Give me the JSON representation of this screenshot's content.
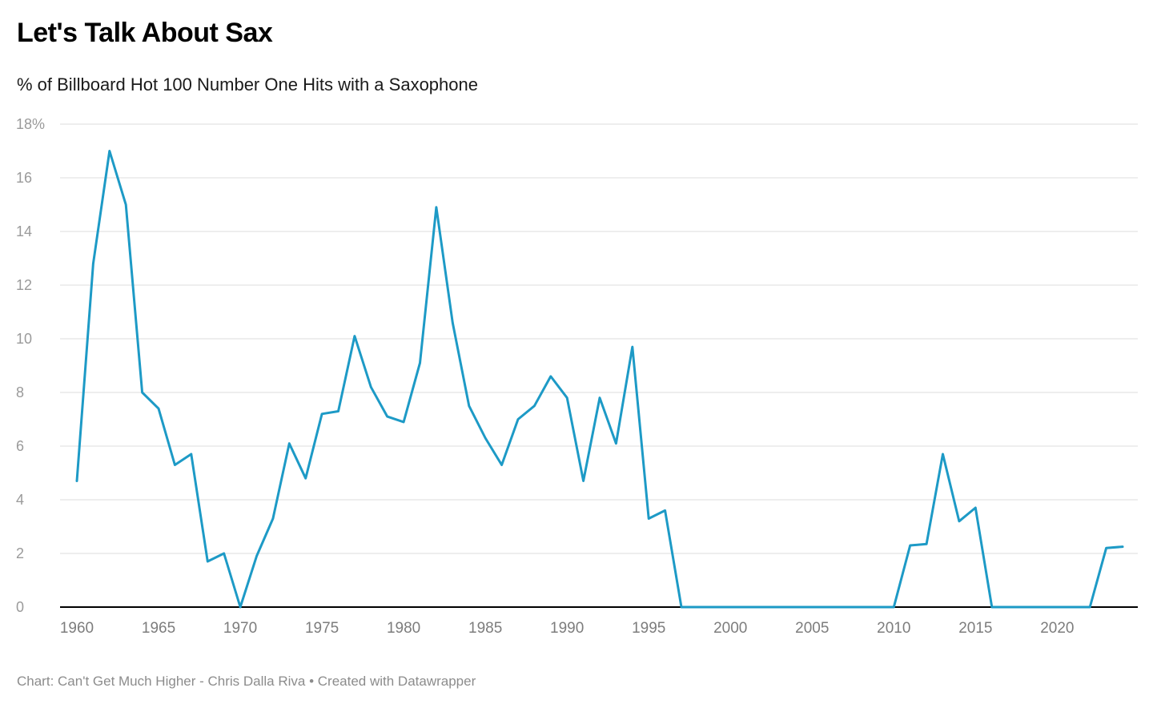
{
  "header": {
    "title": "Let's Talk About Sax",
    "subtitle": "% of Billboard Hot 100 Number One Hits with a Saxophone"
  },
  "footer": {
    "credit": "Chart: Can't Get Much Higher - Chris Dalla Riva • Created with Datawrapper"
  },
  "colors": {
    "line": "#1d9ac6",
    "grid": "#dddddd",
    "axis": "#000000",
    "y_tick_label": "#9a9a9a",
    "x_tick_label": "#7d7d7d"
  },
  "chart_data": {
    "type": "line",
    "title": "Let's Talk About Sax",
    "subtitle": "% of Billboard Hot 100 Number One Hits with a Saxophone",
    "xlabel": "",
    "ylabel": "",
    "y_unit": "%",
    "ylim": [
      0,
      18
    ],
    "ytick_step": 2,
    "xticks": [
      1960,
      1965,
      1970,
      1975,
      1980,
      1985,
      1990,
      1995,
      2000,
      2005,
      2010,
      2015,
      2020
    ],
    "grid": "horizontal",
    "legend": "none",
    "x": [
      1960,
      1961,
      1962,
      1963,
      1964,
      1965,
      1966,
      1967,
      1968,
      1969,
      1970,
      1971,
      1972,
      1973,
      1974,
      1975,
      1976,
      1977,
      1978,
      1979,
      1980,
      1981,
      1982,
      1983,
      1984,
      1985,
      1986,
      1987,
      1988,
      1989,
      1990,
      1991,
      1992,
      1993,
      1994,
      1995,
      1996,
      1997,
      1998,
      1999,
      2000,
      2001,
      2002,
      2003,
      2004,
      2005,
      2006,
      2007,
      2008,
      2009,
      2010,
      2011,
      2012,
      2013,
      2014,
      2015,
      2016,
      2017,
      2018,
      2019,
      2020,
      2021,
      2022,
      2023,
      2024
    ],
    "values": [
      4.7,
      12.8,
      17.0,
      15.0,
      8.0,
      7.4,
      5.3,
      5.7,
      1.7,
      2.0,
      0,
      1.9,
      3.3,
      6.1,
      4.8,
      7.2,
      7.3,
      10.1,
      8.2,
      7.1,
      6.9,
      9.1,
      14.9,
      10.6,
      7.5,
      6.3,
      5.3,
      7.0,
      7.5,
      8.6,
      7.8,
      4.7,
      7.8,
      6.1,
      9.7,
      3.3,
      3.6,
      0,
      0,
      0,
      0,
      0,
      0,
      0,
      0,
      0,
      0,
      0,
      0,
      0,
      0,
      2.3,
      2.35,
      5.7,
      3.2,
      3.7,
      0,
      0,
      0,
      0,
      0,
      0,
      0,
      2.2,
      2.25
    ]
  }
}
